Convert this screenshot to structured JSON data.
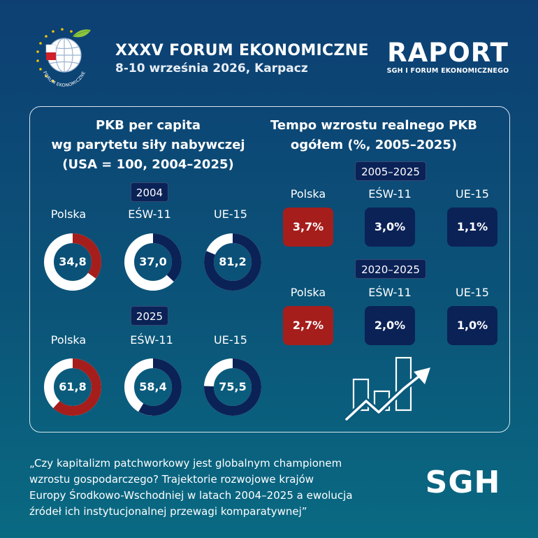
{
  "header": {
    "logo_text": "FORUM EKONOMICZNE",
    "event_title": "XXXV FORUM EKONOMICZNE",
    "event_date": "8-10 września 2026, Karpacz",
    "raport_word": "RAPORT",
    "raport_sub": "SGH I FORUM EKONOMICZNEGO"
  },
  "left_section": {
    "title_lines": [
      "PKB per capita",
      "wg parytetu siły nabywczej",
      "(USA = 100, 2004–2025)"
    ],
    "groups": [
      {
        "year": "2004",
        "items": [
          {
            "label": "Polska",
            "value_text": "34,8",
            "value": 34.8,
            "color": "#a51e1c"
          },
          {
            "label": "EŚW-11",
            "value_text": "37,0",
            "value": 37.0,
            "color": "#0b2257"
          },
          {
            "label": "UE-15",
            "value_text": "81,2",
            "value": 81.2,
            "color": "#0b2257"
          }
        ]
      },
      {
        "year": "2025",
        "items": [
          {
            "label": "Polska",
            "value_text": "61,8",
            "value": 61.8,
            "color": "#a51e1c"
          },
          {
            "label": "EŚW-11",
            "value_text": "58,4",
            "value": 58.4,
            "color": "#0b2257"
          },
          {
            "label": "UE-15",
            "value_text": "75,5",
            "value": 75.5,
            "color": "#0b2257"
          }
        ]
      }
    ]
  },
  "right_section": {
    "title_lines": [
      "Tempo wzrostu realnego PKB",
      "ogółem (%, 2005–2025)"
    ],
    "groups": [
      {
        "period": "2005–2025",
        "items": [
          {
            "label": "Polska",
            "value": "3,7%",
            "highlight": true
          },
          {
            "label": "EŚW-11",
            "value": "3,0%",
            "highlight": false
          },
          {
            "label": "UE-15",
            "value": "1,1%",
            "highlight": false
          }
        ]
      },
      {
        "period": "2020–2025",
        "items": [
          {
            "label": "Polska",
            "value": "2,7%",
            "highlight": true
          },
          {
            "label": "EŚW-11",
            "value": "2,0%",
            "highlight": false
          },
          {
            "label": "UE-15",
            "value": "1,0%",
            "highlight": false
          }
        ]
      }
    ],
    "icon": "growth-chart-arrow-icon"
  },
  "footer": {
    "quote_lines": [
      "„Czy kapitalizm patchworkowy jest globalnym championem",
      "wzrostu gospodarczego? Trajektorie rozwojowe krajów",
      "Europy Środkowo-Wschodniej w latach 2004–2025 a ewolucja",
      "źródeł ich instytucjonalnej przewagi komparatywnej”"
    ],
    "sgh_logo": "SGH"
  },
  "colors": {
    "background_top": "#0d3f73",
    "background_bottom": "#0a6a82",
    "accent_red": "#a51e1c",
    "navy": "#0b2257",
    "ring_track": "#ffffff"
  }
}
